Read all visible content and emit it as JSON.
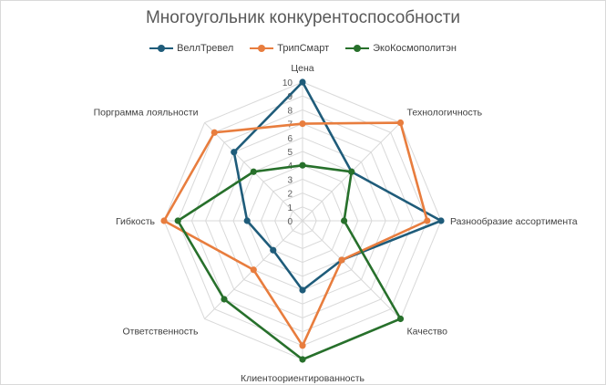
{
  "chart_data": {
    "type": "radar",
    "title": "Многоугольник конкурентоспособности",
    "categories": [
      "Цена",
      "Технологичность",
      "Разнообразие ассортимента",
      "Качество",
      "Клиентоориентированность",
      "Ответственность",
      "Гибкость",
      "Порграмма лояльности"
    ],
    "rlim": [
      0,
      10
    ],
    "ticks": [
      "0",
      "1",
      "2",
      "3",
      "4",
      "5",
      "6",
      "7",
      "8",
      "9",
      "10"
    ],
    "grid": true,
    "legend_position": "top",
    "series": [
      {
        "name": "ВеллТревел",
        "color": "#1f5c7a",
        "values": [
          10,
          5,
          10,
          4,
          5,
          3,
          4,
          7
        ]
      },
      {
        "name": "ТрипСмарт",
        "color": "#e87d3e",
        "values": [
          7,
          10,
          9,
          4,
          9,
          5,
          10,
          9
        ]
      },
      {
        "name": "ЭкоКосмополитэн",
        "color": "#27702b",
        "values": [
          4,
          5,
          3,
          10,
          10,
          8,
          9,
          5
        ]
      }
    ]
  }
}
